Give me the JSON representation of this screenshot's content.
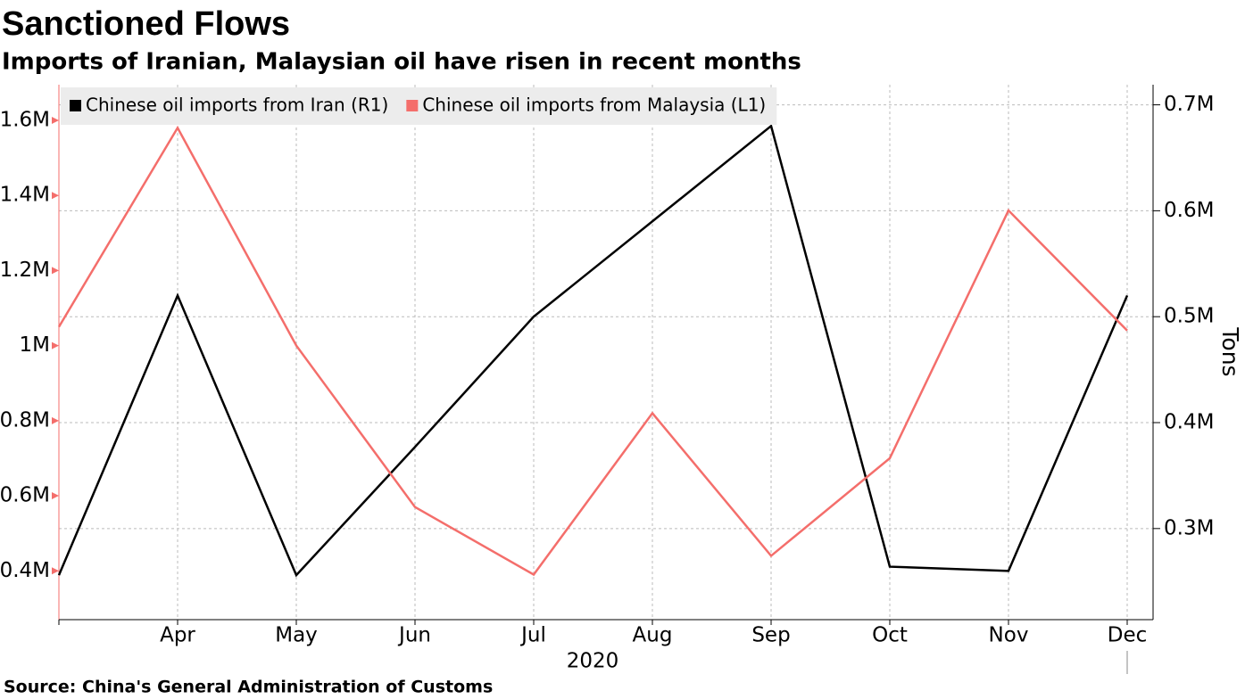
{
  "chart_data": {
    "type": "line",
    "title": "Sanctioned Flows",
    "subtitle": "Imports of Iranian, Malaysian oil have risen in recent months",
    "source": "Source: China's General Administration of Customs",
    "x_label": "2020",
    "y2_label": "Tons",
    "categories": [
      null,
      "Apr",
      "May",
      "Jun",
      "Jul",
      "Aug",
      "Sep",
      "Oct",
      "Nov",
      "Dec"
    ],
    "series": [
      {
        "name": "Chinese oil imports from Iran (R1)",
        "color": "#000000",
        "axis": "y2",
        "values": [
          256000,
          520000,
          256000,
          377000,
          500000,
          590000,
          680000,
          264000,
          260000,
          520000
        ]
      },
      {
        "name": "Chinese oil imports from Malaysia (L1)",
        "color": "#f46e6b",
        "axis": "y",
        "values": [
          1050000,
          1580000,
          1000000,
          570000,
          390000,
          820000,
          440000,
          700000,
          1360000,
          1040000
        ]
      }
    ],
    "ylim": [
      270000,
      1695000
    ],
    "yticks": [
      {
        "value": 400000,
        "label": "0.4M"
      },
      {
        "value": 600000,
        "label": "0.6M"
      },
      {
        "value": 800000,
        "label": "0.8M"
      },
      {
        "value": 1000000,
        "label": "1M"
      },
      {
        "value": 1200000,
        "label": "1.2M"
      },
      {
        "value": 1400000,
        "label": "1.4M"
      },
      {
        "value": 1600000,
        "label": "1.6M"
      }
    ],
    "y2lim": [
      214000,
      719000
    ],
    "y2ticks": [
      {
        "value": 300000,
        "label": "0.3M"
      },
      {
        "value": 400000,
        "label": "0.4M"
      },
      {
        "value": 500000,
        "label": "0.5M"
      },
      {
        "value": 600000,
        "label": "0.6M"
      },
      {
        "value": 700000,
        "label": "0.7M"
      }
    ],
    "grid": true,
    "legend": "upper left"
  }
}
